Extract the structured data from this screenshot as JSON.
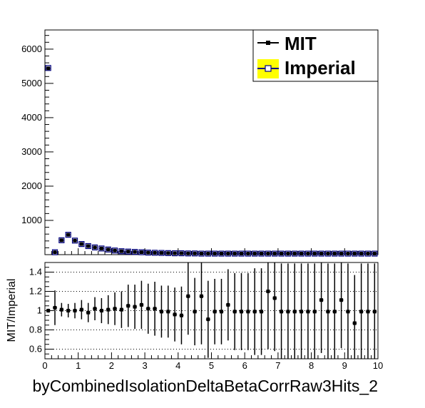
{
  "chart_data": [
    {
      "id": "main",
      "type": "scatter",
      "xlim": [
        0,
        10
      ],
      "ylim": [
        0,
        6560
      ],
      "yticks": [
        1000,
        2000,
        3000,
        4000,
        5000,
        6000
      ],
      "ytick_labels": [
        "1000",
        "2000",
        "3000",
        "4000",
        "5000",
        "6000"
      ],
      "grid": false,
      "legend_position": "top-right",
      "x": [
        0.1,
        0.3,
        0.5,
        0.7,
        0.9,
        1.1,
        1.3,
        1.5,
        1.7,
        1.9,
        2.1,
        2.3,
        2.5,
        2.7,
        2.9,
        3.1,
        3.3,
        3.5,
        3.7,
        3.9,
        4.1,
        4.3,
        4.5,
        4.7,
        4.9,
        5.1,
        5.3,
        5.5,
        5.7,
        5.9,
        6.1,
        6.3,
        6.5,
        6.7,
        6.9,
        7.1,
        7.3,
        7.5,
        7.7,
        7.9,
        8.1,
        8.3,
        8.5,
        8.7,
        8.9,
        9.1,
        9.3,
        9.5,
        9.7,
        9.9
      ],
      "series": [
        {
          "name": "MIT",
          "color": "#000000",
          "marker": "filled-square",
          "values": [
            5440,
            70,
            420,
            580,
            410,
            310,
            250,
            210,
            180,
            150,
            120,
            100,
            90,
            80,
            70,
            60,
            55,
            50,
            45,
            40,
            40,
            35,
            35,
            30,
            30,
            30,
            30,
            30,
            30,
            30,
            30,
            30,
            30,
            30,
            30,
            30,
            30,
            30,
            30,
            30,
            30,
            30,
            30,
            30,
            30,
            30,
            30,
            30,
            30,
            30
          ]
        },
        {
          "name": "Imperial",
          "color": "#000080",
          "fill": "#ffff00",
          "marker": "open-square",
          "values": [
            5450,
            70,
            420,
            580,
            410,
            310,
            250,
            210,
            180,
            150,
            120,
            100,
            90,
            80,
            70,
            60,
            55,
            50,
            45,
            40,
            40,
            35,
            35,
            30,
            30,
            30,
            30,
            30,
            30,
            30,
            30,
            30,
            30,
            30,
            30,
            30,
            30,
            30,
            30,
            30,
            30,
            30,
            30,
            30,
            30,
            30,
            30,
            30,
            30,
            30
          ]
        }
      ]
    },
    {
      "id": "ratio",
      "type": "scatter",
      "ylabel": "MIT/Imperial",
      "xlabel": "byCombinedIsolationDeltaBetaCorrRaw3Hits_2",
      "xlim": [
        0,
        10
      ],
      "ylim": [
        0.5,
        1.5
      ],
      "xticks": [
        0,
        1,
        2,
        3,
        4,
        5,
        6,
        7,
        8,
        9,
        10
      ],
      "xtick_labels": [
        "0",
        "1",
        "2",
        "3",
        "4",
        "5",
        "6",
        "7",
        "8",
        "9",
        "10"
      ],
      "yticks": [
        0.6,
        0.8,
        1.0,
        1.2,
        1.4
      ],
      "ytick_labels": [
        "0.6",
        "0.8",
        "1",
        "1.2",
        "1.4"
      ],
      "grid": true,
      "grid_style": "dotted-horizontal",
      "x": [
        0.1,
        0.3,
        0.5,
        0.7,
        0.9,
        1.1,
        1.3,
        1.5,
        1.7,
        1.9,
        2.1,
        2.3,
        2.5,
        2.7,
        2.9,
        3.1,
        3.3,
        3.5,
        3.7,
        3.9,
        4.1,
        4.3,
        4.5,
        4.7,
        4.9,
        5.1,
        5.3,
        5.5,
        5.7,
        5.9,
        6.1,
        6.3,
        6.5,
        6.7,
        6.9,
        7.1,
        7.3,
        7.5,
        7.7,
        7.9,
        8.1,
        8.3,
        8.5,
        8.7,
        8.9,
        9.1,
        9.3,
        9.5,
        9.7,
        9.9
      ],
      "values": [
        1.0,
        1.03,
        1.01,
        1.0,
        1.0,
        1.01,
        0.98,
        1.02,
        1.0,
        1.01,
        1.02,
        1.01,
        1.05,
        1.04,
        1.06,
        1.02,
        1.02,
        0.99,
        0.99,
        0.96,
        0.95,
        1.15,
        0.99,
        1.15,
        0.91,
        0.99,
        0.99,
        1.06,
        0.99,
        0.99,
        0.99,
        0.99,
        0.99,
        1.2,
        1.13,
        0.99,
        0.99,
        0.99,
        0.99,
        0.99,
        0.99,
        1.11,
        0.99,
        0.99,
        1.11,
        0.99,
        0.87,
        0.99,
        0.99,
        0.99
      ],
      "errors": [
        0.02,
        0.18,
        0.07,
        0.07,
        0.08,
        0.1,
        0.1,
        0.12,
        0.13,
        0.15,
        0.17,
        0.19,
        0.22,
        0.23,
        0.25,
        0.26,
        0.28,
        0.27,
        0.27,
        0.28,
        0.3,
        0.4,
        0.35,
        0.5,
        0.4,
        0.34,
        0.34,
        0.37,
        0.4,
        0.4,
        0.4,
        0.45,
        0.45,
        0.6,
        0.55,
        0.5,
        0.5,
        0.5,
        0.5,
        0.5,
        0.5,
        0.55,
        0.5,
        0.5,
        0.5,
        0.5,
        0.5,
        0.5,
        0.5,
        0.5
      ],
      "color": "#000000",
      "marker": "filled-square"
    }
  ],
  "legend": {
    "mit_label": "MIT",
    "imperial_label": "Imperial"
  }
}
